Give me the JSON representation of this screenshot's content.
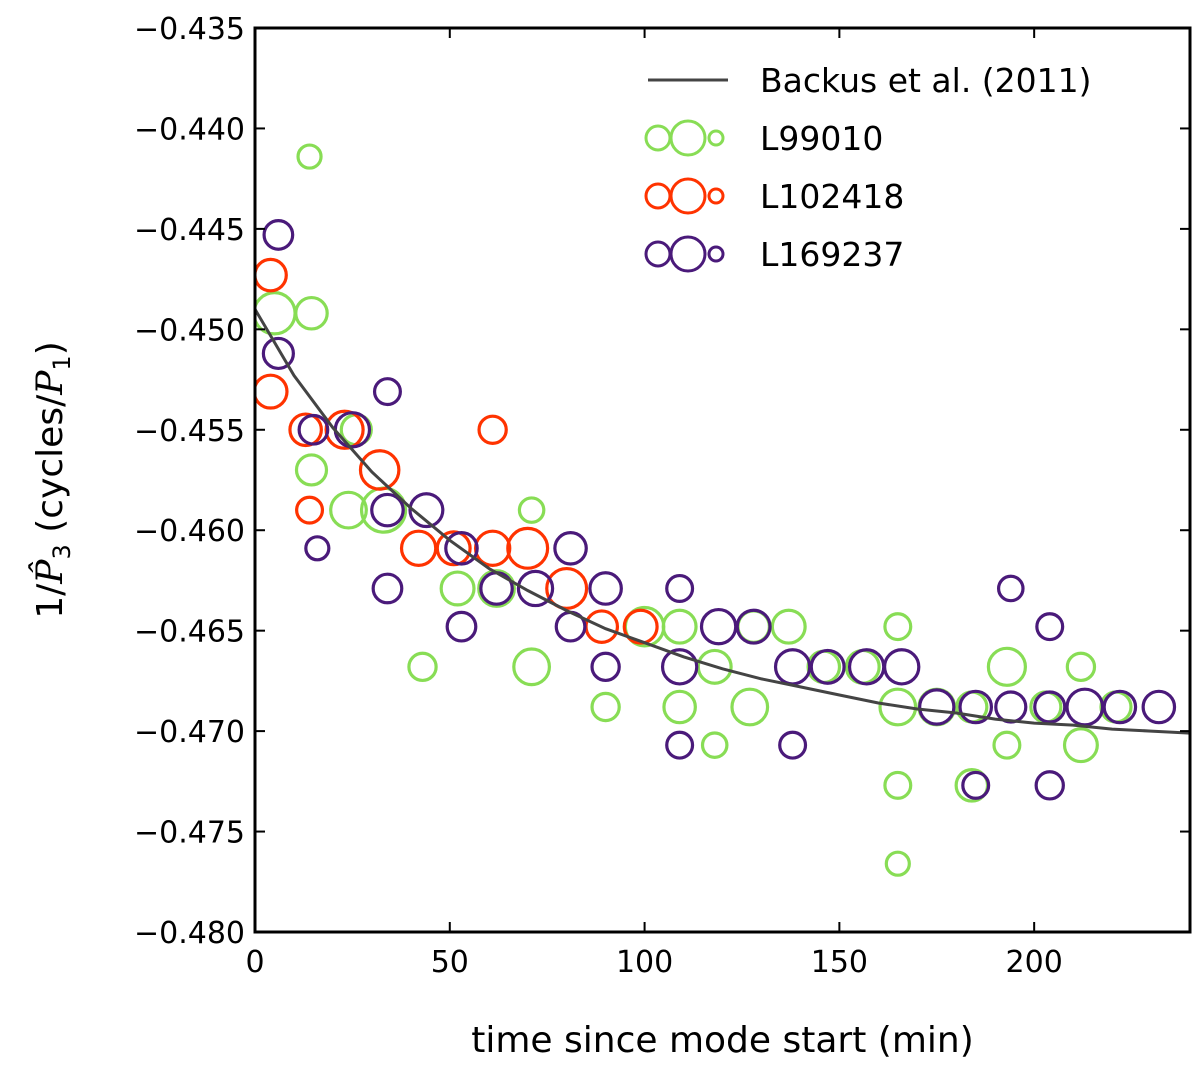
{
  "chart_data": {
    "type": "scatter",
    "title": "",
    "xlabel": "time since mode start (min)",
    "ylabel_prefix": "1/",
    "ylabel_var": "P̂",
    "ylabel_sub": "3",
    "ylabel_mid": " (cycles/",
    "ylabel_var2": "P",
    "ylabel_sub2": "1",
    "ylabel_end": ")",
    "xlim": [
      0,
      240
    ],
    "ylim": [
      -0.48,
      -0.435
    ],
    "xticks": [
      0,
      50,
      100,
      150,
      200
    ],
    "xtick_labels": [
      "0",
      "50",
      "100",
      "150",
      "200"
    ],
    "yticks": [
      -0.435,
      -0.44,
      -0.445,
      -0.45,
      -0.455,
      -0.46,
      -0.465,
      -0.47,
      -0.475,
      -0.48
    ],
    "ytick_labels": [
      "−0.435",
      "−0.440",
      "−0.445",
      "−0.450",
      "−0.455",
      "−0.460",
      "−0.465",
      "−0.470",
      "−0.475",
      "−0.480"
    ],
    "legend_position": "top-right",
    "model": {
      "name": "Backus et al. (2011)",
      "color": "#444444",
      "x": [
        0,
        10,
        20,
        30,
        40,
        50,
        60,
        70,
        80,
        90,
        100,
        110,
        120,
        130,
        140,
        150,
        160,
        170,
        180,
        190,
        200,
        210,
        220,
        230,
        240
      ],
      "y": [
        -0.449,
        -0.4523,
        -0.4549,
        -0.4571,
        -0.4589,
        -0.4605,
        -0.4619,
        -0.463,
        -0.464,
        -0.4649,
        -0.4656,
        -0.4663,
        -0.4669,
        -0.4674,
        -0.4678,
        -0.4682,
        -0.4686,
        -0.4689,
        -0.4691,
        -0.4694,
        -0.4696,
        -0.4697,
        -0.4699,
        -0.47,
        -0.4701
      ]
    },
    "series": [
      {
        "name": "L99010",
        "color": "#88dd55",
        "points": [
          {
            "x": 5,
            "y": -0.4492,
            "w": 0.9
          },
          {
            "x": 14,
            "y": -0.4414,
            "w": 0.25
          },
          {
            "x": 14.5,
            "y": -0.4492,
            "w": 0.55
          },
          {
            "x": 14.5,
            "y": -0.457,
            "w": 0.5
          },
          {
            "x": 24,
            "y": -0.459,
            "w": 0.7
          },
          {
            "x": 26,
            "y": -0.455,
            "w": 0.5
          },
          {
            "x": 33,
            "y": -0.459,
            "w": 1.0
          },
          {
            "x": 43,
            "y": -0.4668,
            "w": 0.4
          },
          {
            "x": 52,
            "y": -0.4629,
            "w": 0.6
          },
          {
            "x": 62,
            "y": -0.4629,
            "w": 0.7
          },
          {
            "x": 71,
            "y": -0.4668,
            "w": 0.7
          },
          {
            "x": 71,
            "y": -0.459,
            "w": 0.3
          },
          {
            "x": 90,
            "y": -0.4688,
            "w": 0.4
          },
          {
            "x": 100,
            "y": -0.4648,
            "w": 0.8
          },
          {
            "x": 109,
            "y": -0.4648,
            "w": 0.6
          },
          {
            "x": 109,
            "y": -0.4688,
            "w": 0.55
          },
          {
            "x": 118,
            "y": -0.4668,
            "w": 0.6
          },
          {
            "x": 118,
            "y": -0.4707,
            "w": 0.3
          },
          {
            "x": 127,
            "y": -0.4688,
            "w": 0.7
          },
          {
            "x": 128,
            "y": -0.4648,
            "w": 0.55
          },
          {
            "x": 137,
            "y": -0.4648,
            "w": 0.6
          },
          {
            "x": 146,
            "y": -0.4668,
            "w": 0.55
          },
          {
            "x": 156,
            "y": -0.4668,
            "w": 0.6
          },
          {
            "x": 165,
            "y": -0.4648,
            "w": 0.35
          },
          {
            "x": 165,
            "y": -0.4688,
            "w": 0.7
          },
          {
            "x": 165,
            "y": -0.4727,
            "w": 0.35
          },
          {
            "x": 165,
            "y": -0.4766,
            "w": 0.25
          },
          {
            "x": 175,
            "y": -0.4688,
            "w": 0.7
          },
          {
            "x": 184,
            "y": -0.4727,
            "w": 0.55
          },
          {
            "x": 184,
            "y": -0.4688,
            "w": 0.5
          },
          {
            "x": 193,
            "y": -0.4668,
            "w": 0.75
          },
          {
            "x": 193,
            "y": -0.4707,
            "w": 0.35
          },
          {
            "x": 203,
            "y": -0.4688,
            "w": 0.5
          },
          {
            "x": 212,
            "y": -0.4668,
            "w": 0.4
          },
          {
            "x": 212,
            "y": -0.4707,
            "w": 0.6
          },
          {
            "x": 221,
            "y": -0.4688,
            "w": 0.5
          }
        ]
      },
      {
        "name": "L102418",
        "color": "#ff3300",
        "points": [
          {
            "x": 4,
            "y": -0.4473,
            "w": 0.55
          },
          {
            "x": 4,
            "y": -0.4531,
            "w": 0.6
          },
          {
            "x": 13,
            "y": -0.455,
            "w": 0.55
          },
          {
            "x": 14,
            "y": -0.459,
            "w": 0.35
          },
          {
            "x": 23,
            "y": -0.455,
            "w": 0.75
          },
          {
            "x": 32,
            "y": -0.457,
            "w": 0.8
          },
          {
            "x": 42,
            "y": -0.4609,
            "w": 0.65
          },
          {
            "x": 51,
            "y": -0.4609,
            "w": 0.6
          },
          {
            "x": 61,
            "y": -0.4609,
            "w": 0.65
          },
          {
            "x": 61,
            "y": -0.455,
            "w": 0.4
          },
          {
            "x": 70,
            "y": -0.4609,
            "w": 0.85
          },
          {
            "x": 80,
            "y": -0.4629,
            "w": 0.85
          },
          {
            "x": 89,
            "y": -0.4648,
            "w": 0.55
          },
          {
            "x": 99,
            "y": -0.4648,
            "w": 0.6
          }
        ]
      },
      {
        "name": "L169237",
        "color": "#4a1a7a",
        "points": [
          {
            "x": 6,
            "y": -0.4453,
            "w": 0.45
          },
          {
            "x": 6,
            "y": -0.4512,
            "w": 0.5
          },
          {
            "x": 15,
            "y": -0.455,
            "w": 0.45
          },
          {
            "x": 16,
            "y": -0.4609,
            "w": 0.25
          },
          {
            "x": 25,
            "y": -0.455,
            "w": 0.65
          },
          {
            "x": 34,
            "y": -0.4531,
            "w": 0.35
          },
          {
            "x": 34,
            "y": -0.459,
            "w": 0.55
          },
          {
            "x": 34,
            "y": -0.4629,
            "w": 0.45
          },
          {
            "x": 44,
            "y": -0.459,
            "w": 0.6
          },
          {
            "x": 53,
            "y": -0.4609,
            "w": 0.55
          },
          {
            "x": 53,
            "y": -0.4648,
            "w": 0.45
          },
          {
            "x": 62,
            "y": -0.4629,
            "w": 0.55
          },
          {
            "x": 72,
            "y": -0.4629,
            "w": 0.65
          },
          {
            "x": 81,
            "y": -0.4609,
            "w": 0.55
          },
          {
            "x": 81,
            "y": -0.4648,
            "w": 0.45
          },
          {
            "x": 90,
            "y": -0.4629,
            "w": 0.55
          },
          {
            "x": 90,
            "y": -0.4668,
            "w": 0.4
          },
          {
            "x": 109,
            "y": -0.4668,
            "w": 0.65
          },
          {
            "x": 109,
            "y": -0.4629,
            "w": 0.35
          },
          {
            "x": 109,
            "y": -0.4707,
            "w": 0.35
          },
          {
            "x": 119,
            "y": -0.4648,
            "w": 0.65
          },
          {
            "x": 128,
            "y": -0.4648,
            "w": 0.6
          },
          {
            "x": 138,
            "y": -0.4668,
            "w": 0.65
          },
          {
            "x": 138,
            "y": -0.4707,
            "w": 0.35
          },
          {
            "x": 147,
            "y": -0.4668,
            "w": 0.6
          },
          {
            "x": 157,
            "y": -0.4668,
            "w": 0.65
          },
          {
            "x": 166,
            "y": -0.4668,
            "w": 0.65
          },
          {
            "x": 175,
            "y": -0.4688,
            "w": 0.65
          },
          {
            "x": 185,
            "y": -0.4688,
            "w": 0.55
          },
          {
            "x": 185,
            "y": -0.4727,
            "w": 0.35
          },
          {
            "x": 194,
            "y": -0.4688,
            "w": 0.5
          },
          {
            "x": 194,
            "y": -0.4629,
            "w": 0.3
          },
          {
            "x": 204,
            "y": -0.4688,
            "w": 0.5
          },
          {
            "x": 204,
            "y": -0.4648,
            "w": 0.35
          },
          {
            "x": 204,
            "y": -0.4727,
            "w": 0.4
          },
          {
            "x": 213,
            "y": -0.4688,
            "w": 0.7
          },
          {
            "x": 222,
            "y": -0.4688,
            "w": 0.55
          },
          {
            "x": 232,
            "y": -0.4688,
            "w": 0.55
          }
        ]
      }
    ]
  }
}
